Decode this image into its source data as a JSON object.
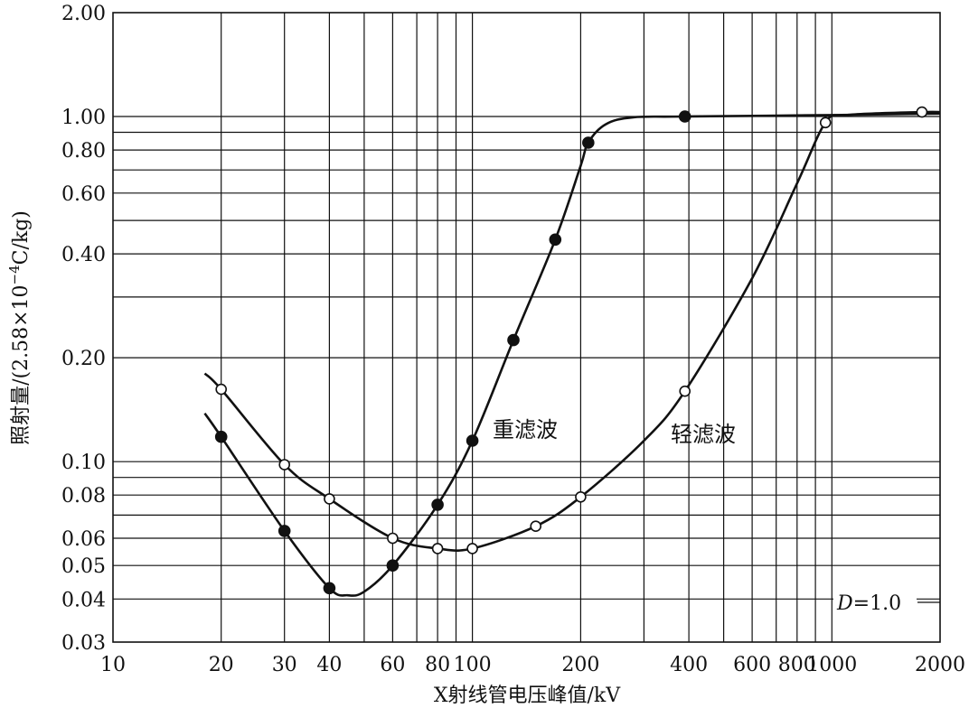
{
  "chart_data": {
    "type": "line",
    "x_scale": "log",
    "y_scale": "log",
    "xlim": [
      10,
      2000
    ],
    "ylim": [
      0.03,
      2.0
    ],
    "xlabel": "X射线管电压峰值/kV",
    "ylabel": "照射量/(2.58×10",
    "ylabel_exp": "−4",
    "ylabel_tail": "C/kg)",
    "x_ticks": [
      10,
      20,
      30,
      40,
      60,
      80,
      100,
      200,
      400,
      600,
      800,
      1000,
      2000
    ],
    "x_tick_labels": [
      "10",
      "20",
      "30",
      "40",
      "60",
      "80",
      "100",
      "200",
      "400",
      "600",
      "800",
      "1000",
      "2000"
    ],
    "y_ticks": [
      0.03,
      0.04,
      0.05,
      0.06,
      0.08,
      0.1,
      0.2,
      0.4,
      0.6,
      0.8,
      1.0,
      2.0
    ],
    "y_tick_labels": [
      "0.03",
      "0.04",
      "0.05",
      "0.06",
      "0.08",
      "0.10",
      "0.20",
      "0.40",
      "0.60",
      "0.80",
      "1.00",
      "2.00"
    ],
    "x_grid": [
      20,
      30,
      40,
      50,
      60,
      70,
      80,
      90,
      100,
      200,
      300,
      400,
      500,
      600,
      700,
      800,
      900,
      1000
    ],
    "y_grid": [
      0.04,
      0.05,
      0.06,
      0.07,
      0.08,
      0.09,
      0.1,
      0.2,
      0.3,
      0.4,
      0.5,
      0.6,
      0.7,
      0.8,
      0.9,
      1.0
    ],
    "grid": true,
    "annotation": {
      "italic": "D",
      "rest": "=1.0"
    },
    "series": [
      {
        "name": "重滤波",
        "marker": "filled",
        "points": [
          [
            20,
            0.118
          ],
          [
            30,
            0.063
          ],
          [
            40,
            0.043
          ],
          [
            60,
            0.05
          ],
          [
            80,
            0.075
          ],
          [
            100,
            0.115
          ],
          [
            130,
            0.225
          ],
          [
            170,
            0.44
          ],
          [
            210,
            0.84
          ],
          [
            390,
            1.0
          ]
        ],
        "curve": [
          [
            18,
            0.138
          ],
          [
            20,
            0.118
          ],
          [
            30,
            0.063
          ],
          [
            40,
            0.043
          ],
          [
            45,
            0.041
          ],
          [
            50,
            0.042
          ],
          [
            60,
            0.05
          ],
          [
            80,
            0.075
          ],
          [
            100,
            0.115
          ],
          [
            130,
            0.225
          ],
          [
            170,
            0.44
          ],
          [
            200,
            0.72
          ],
          [
            210,
            0.84
          ],
          [
            235,
            0.95
          ],
          [
            280,
            0.995
          ],
          [
            390,
            1.0
          ],
          [
            1000,
            1.01
          ],
          [
            2000,
            1.02
          ]
        ]
      },
      {
        "name": "轻滤波",
        "marker": "open",
        "points": [
          [
            20,
            0.162
          ],
          [
            30,
            0.098
          ],
          [
            40,
            0.078
          ],
          [
            60,
            0.06
          ],
          [
            80,
            0.056
          ],
          [
            100,
            0.056
          ],
          [
            150,
            0.065
          ],
          [
            200,
            0.079
          ],
          [
            390,
            0.16
          ],
          [
            960,
            0.96
          ],
          [
            1780,
            1.03
          ]
        ],
        "curve": [
          [
            18,
            0.18
          ],
          [
            20,
            0.162
          ],
          [
            30,
            0.098
          ],
          [
            40,
            0.078
          ],
          [
            60,
            0.06
          ],
          [
            80,
            0.056
          ],
          [
            100,
            0.056
          ],
          [
            150,
            0.065
          ],
          [
            200,
            0.079
          ],
          [
            300,
            0.115
          ],
          [
            390,
            0.16
          ],
          [
            600,
            0.34
          ],
          [
            800,
            0.64
          ],
          [
            960,
            0.96
          ],
          [
            1100,
            1.01
          ],
          [
            1780,
            1.03
          ],
          [
            2000,
            1.03
          ]
        ]
      }
    ]
  }
}
